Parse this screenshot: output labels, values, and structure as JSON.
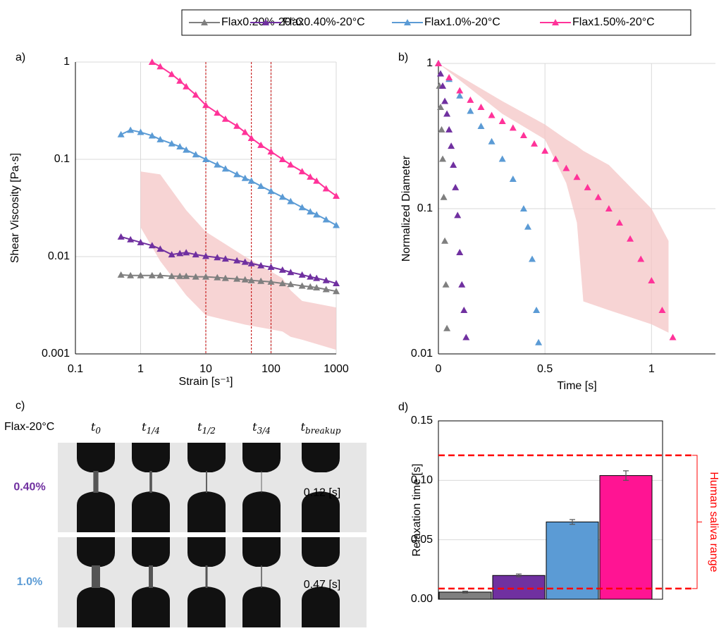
{
  "chart_data": [
    {
      "type": "line",
      "panel_label": "a)",
      "x_label": "Strain [s⁻¹]",
      "y_label": "Shear Viscosity [Pa·s]",
      "log_x": true,
      "log_y": true,
      "grid": true,
      "xlim": [
        0.1,
        1000
      ],
      "ylim": [
        0.001,
        1
      ],
      "xticks": [
        0.1,
        1,
        10,
        100,
        1000
      ],
      "yticks": [
        0.001,
        0.01,
        0.1,
        1
      ],
      "x": [
        0.5,
        0.7,
        1,
        1.5,
        2,
        3,
        4,
        5,
        7,
        10,
        15,
        20,
        30,
        40,
        50,
        70,
        100,
        150,
        200,
        300,
        400,
        500,
        700,
        1000
      ],
      "series": [
        {
          "name": "Flax0.20%-20°C",
          "color": "#7f7f7f",
          "values": [
            0.0065,
            0.0064,
            0.0064,
            0.0064,
            0.0064,
            0.0063,
            0.0063,
            0.0063,
            0.0062,
            0.0062,
            0.0061,
            0.006,
            0.0059,
            0.0058,
            0.0057,
            0.0056,
            0.0055,
            0.0053,
            0.0052,
            0.005,
            0.0049,
            0.0048,
            0.0046,
            0.0044
          ]
        },
        {
          "name": "Flax0.40%-20°C",
          "color": "#7030a0",
          "values": [
            0.016,
            0.015,
            0.014,
            0.013,
            0.012,
            0.0105,
            0.0108,
            0.011,
            0.0105,
            0.0101,
            0.0098,
            0.0095,
            0.0091,
            0.0088,
            0.0085,
            0.0081,
            0.0078,
            0.0073,
            0.0069,
            0.0065,
            0.0062,
            0.006,
            0.0057,
            0.0053
          ]
        },
        {
          "name": "Flax1.0%-20°C",
          "color": "#5b9bd5",
          "values": [
            0.18,
            0.2,
            0.19,
            0.175,
            0.16,
            0.145,
            0.135,
            0.125,
            0.112,
            0.1,
            0.088,
            0.08,
            0.07,
            0.064,
            0.06,
            0.053,
            0.047,
            0.041,
            0.037,
            0.032,
            0.029,
            0.027,
            0.024,
            0.021
          ]
        },
        {
          "name": "Flax1.50%-20°C",
          "color": "#ff3399",
          "values": [
            null,
            null,
            null,
            1.0,
            0.9,
            0.75,
            0.64,
            0.56,
            0.46,
            0.36,
            0.3,
            0.26,
            0.22,
            0.19,
            0.165,
            0.14,
            0.12,
            0.1,
            0.088,
            0.075,
            0.066,
            0.06,
            0.05,
            0.042
          ]
        }
      ],
      "band": {
        "color": "#f4c6c6",
        "x": [
          1,
          2,
          5,
          10,
          40,
          150,
          200,
          300,
          1000
        ],
        "upper": [
          0.075,
          0.07,
          0.03,
          0.018,
          0.01,
          0.006,
          0.0045,
          0.0035,
          0.003
        ],
        "lower": [
          0.02,
          0.009,
          0.004,
          0.0025,
          0.002,
          0.0017,
          0.0015,
          0.0014,
          0.0011
        ]
      },
      "vlines": [
        10,
        50,
        100
      ],
      "vline_color": "#c00000"
    },
    {
      "type": "scatter",
      "panel_label": "b)",
      "x_label": "Time [s]",
      "y_label": "Normalized Diameter",
      "log_x": false,
      "log_y": true,
      "grid": true,
      "xlim": [
        0,
        1.3
      ],
      "ylim": [
        0.01,
        1
      ],
      "xticks": [
        0,
        0.5,
        1
      ],
      "yticks": [
        0.01,
        0.1,
        1
      ],
      "series": [
        {
          "name": "Flax0.20%-20°C",
          "color": "#7f7f7f",
          "x": [
            0,
            0.005,
            0.01,
            0.015,
            0.02,
            0.025,
            0.03,
            0.035,
            0.04
          ],
          "values": [
            1,
            0.7,
            0.5,
            0.35,
            0.22,
            0.12,
            0.06,
            0.03,
            0.015
          ]
        },
        {
          "name": "Flax0.40%-20°C",
          "color": "#7030a0",
          "x": [
            0,
            0.01,
            0.02,
            0.03,
            0.04,
            0.05,
            0.06,
            0.07,
            0.08,
            0.09,
            0.1,
            0.11,
            0.12,
            0.13
          ],
          "values": [
            1,
            0.85,
            0.7,
            0.55,
            0.45,
            0.35,
            0.27,
            0.2,
            0.14,
            0.09,
            0.05,
            0.03,
            0.02,
            0.013
          ]
        },
        {
          "name": "Flax1.0%-20°C",
          "color": "#5b9bd5",
          "x": [
            0,
            0.05,
            0.1,
            0.15,
            0.2,
            0.25,
            0.3,
            0.35,
            0.4,
            0.42,
            0.44,
            0.46,
            0.47
          ],
          "values": [
            1,
            0.78,
            0.6,
            0.47,
            0.37,
            0.29,
            0.22,
            0.16,
            0.1,
            0.075,
            0.045,
            0.02,
            0.012
          ]
        },
        {
          "name": "Flax1.50%-20°C",
          "color": "#ff3399",
          "x": [
            0,
            0.05,
            0.1,
            0.15,
            0.2,
            0.25,
            0.3,
            0.35,
            0.4,
            0.45,
            0.5,
            0.55,
            0.6,
            0.65,
            0.7,
            0.75,
            0.8,
            0.85,
            0.9,
            0.95,
            1.0,
            1.05,
            1.1
          ],
          "values": [
            1,
            0.8,
            0.65,
            0.56,
            0.5,
            0.44,
            0.4,
            0.36,
            0.32,
            0.28,
            0.25,
            0.22,
            0.19,
            0.165,
            0.14,
            0.12,
            0.1,
            0.08,
            0.062,
            0.045,
            0.032,
            0.02,
            0.013
          ]
        }
      ],
      "band": {
        "color": "#f4c6c6",
        "x": [
          0,
          0.3,
          0.5,
          0.6,
          0.65,
          0.68,
          0.8,
          1.0,
          1.08
        ],
        "upper": [
          1,
          0.55,
          0.38,
          0.3,
          0.27,
          0.25,
          0.2,
          0.1,
          0.06
        ],
        "lower": [
          1,
          0.45,
          0.3,
          0.15,
          0.08,
          0.023,
          0.02,
          0.016,
          0.014
        ]
      }
    },
    {
      "type": "bar",
      "panel_label": "d)",
      "y_label": "Relaxation time [s]",
      "grid": true,
      "frame": true,
      "ylim": [
        0,
        0.15
      ],
      "yticks": [
        {
          "value": 0,
          "label": "0.00"
        },
        {
          "value": 0.05,
          "label": "0.05"
        },
        {
          "value": 0.1,
          "label": "0.10"
        },
        {
          "value": 0.15,
          "label": "0.15"
        }
      ],
      "categories": [
        null,
        null,
        null,
        null
      ],
      "values": [
        0.006,
        0.02,
        0.065,
        0.104
      ],
      "errors": [
        0.0008,
        0.0012,
        0.002,
        0.004
      ],
      "colors": [
        "#7f7f7f",
        "#7030a0",
        "#5b9bd5",
        "#ff1493"
      ],
      "hlines": [
        0.121,
        0.009
      ],
      "hline_color": "#ff0000",
      "annotation": "Human saliva range"
    }
  ],
  "panel_c": {
    "panel_label": "c)",
    "row_header": "Flax-20°C",
    "columns": [
      {
        "base": "t",
        "sub": "0"
      },
      {
        "base": "t",
        "sub": "1/4"
      },
      {
        "base": "t",
        "sub": "1/2"
      },
      {
        "base": "t",
        "sub": "3/4"
      },
      {
        "base": "t",
        "sub": "breakup"
      }
    ],
    "rows": [
      {
        "label": "0.40%",
        "color": "#7030a0",
        "time": "0.12 [s]"
      },
      {
        "label": "1.0%",
        "color": "#5b9bd5",
        "time": "0.47 [s]"
      }
    ]
  }
}
